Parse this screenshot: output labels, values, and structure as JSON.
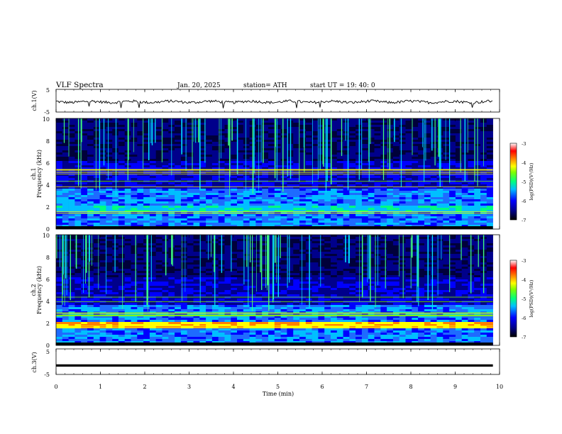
{
  "header": {
    "title": "VLF  Spectra",
    "date": "Jan. 20, 2025",
    "station": "station= ATH",
    "start": "start  UT  =   19: 40: 0"
  },
  "chart_data": [
    {
      "type": "line",
      "name": "ch1_waveform",
      "ylabel": "ch.1(V)",
      "ylim": [
        -5,
        5
      ],
      "yticks": [
        "5",
        "-5"
      ],
      "x_range_min": [
        0,
        9.85
      ],
      "approx_level": -0.5
    },
    {
      "type": "heatmap",
      "name": "ch1_spectrogram",
      "ylabel_top": "ch.1",
      "ylabel": "Frequency  (kHz)",
      "ylim": [
        0,
        10
      ],
      "yticks": [
        "0",
        "2",
        "4",
        "6",
        "8",
        "10"
      ],
      "colorbar": {
        "label": "log(PSD)(V²/Hz)",
        "range": [
          -7,
          -3
        ],
        "ticks": [
          "-3",
          "-4",
          "-5",
          "-6",
          "-7"
        ]
      }
    },
    {
      "type": "heatmap",
      "name": "ch2_spectrogram",
      "ylabel_top": "ch.2",
      "ylabel": "Frequency  (kHz)",
      "ylim": [
        0,
        10
      ],
      "yticks": [
        "0",
        "2",
        "4",
        "6",
        "8",
        "10"
      ],
      "colorbar": {
        "label": "log(PSD)(V²/Hz)",
        "range": [
          -7,
          -3
        ],
        "ticks": [
          "-3",
          "-4",
          "-5",
          "-6",
          "-7"
        ]
      }
    },
    {
      "type": "line",
      "name": "ch3_waveform",
      "ylabel": "ch.3(V)",
      "ylim": [
        -5,
        5
      ],
      "yticks": [
        "5",
        "-5"
      ],
      "approx_level": -1.5
    }
  ],
  "xaxis": {
    "label": "Time  (min)",
    "xlim": [
      0,
      10
    ],
    "ticks": [
      "0",
      "1",
      "2",
      "3",
      "4",
      "5",
      "6",
      "7",
      "8",
      "9",
      "10"
    ]
  },
  "colors": {
    "colormap": [
      "#000000",
      "#00008b",
      "#0000ff",
      "#00bfff",
      "#00ff7f",
      "#7fff00",
      "#ffff00",
      "#ff8000",
      "#ff0000",
      "#ffffff"
    ]
  }
}
